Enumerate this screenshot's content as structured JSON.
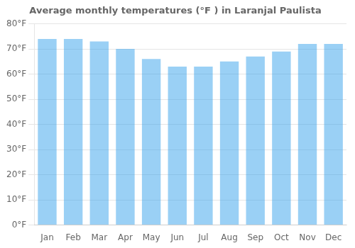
{
  "chart_data": {
    "type": "bar",
    "title": "Average monthly temperatures (°F ) in Laranjal Paulista",
    "categories": [
      "Jan",
      "Feb",
      "Mar",
      "Apr",
      "May",
      "Jun",
      "Jul",
      "Aug",
      "Sep",
      "Oct",
      "Nov",
      "Dec"
    ],
    "values": [
      74,
      74,
      73,
      70,
      66,
      63,
      63,
      65,
      67,
      69,
      72,
      72
    ],
    "ylim": [
      0,
      80
    ],
    "yticks": [
      {
        "value": 0,
        "label": "0°F"
      },
      {
        "value": 10,
        "label": "10°F"
      },
      {
        "value": 20,
        "label": "20°F"
      },
      {
        "value": 30,
        "label": "30°F"
      },
      {
        "value": 40,
        "label": "40°F"
      },
      {
        "value": 50,
        "label": "50°F"
      },
      {
        "value": 60,
        "label": "60°F"
      },
      {
        "value": 70,
        "label": "70°F"
      },
      {
        "value": 80,
        "label": "80°F"
      }
    ],
    "grid": true
  }
}
